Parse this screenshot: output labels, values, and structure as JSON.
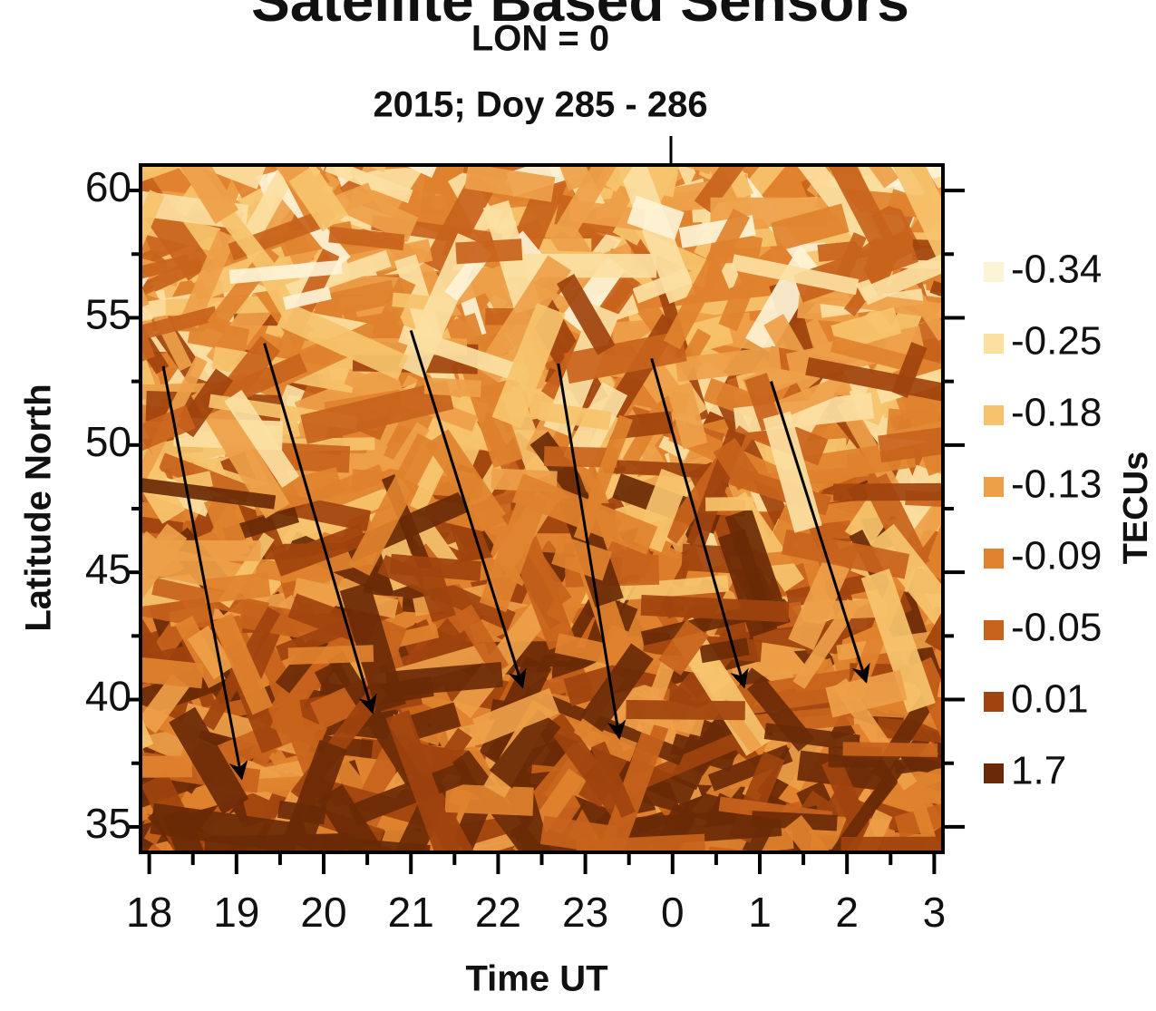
{
  "chart_data": {
    "type": "tec-map",
    "header": "Satellite Based Sensors",
    "title": "LON = 0",
    "subtitle": "2015; Doy 285 - 286",
    "xlabel": "Time UT",
    "ylabel": "Latitude North",
    "xlim": [
      17.9,
      27.1
    ],
    "ylim": [
      34,
      61
    ],
    "xticks": [
      18,
      19,
      20,
      21,
      22,
      23,
      {
        "value": 24,
        "label": "0"
      },
      {
        "value": 25,
        "label": "1"
      },
      {
        "value": 26,
        "label": "2"
      },
      {
        "value": 27,
        "label": "3"
      }
    ],
    "minor_xticks": [
      18.5,
      19.5,
      20.5,
      21.5,
      22.5,
      23.5,
      24.5,
      25.5,
      26.5
    ],
    "yticks": [
      35,
      40,
      45,
      50,
      55,
      60
    ],
    "minor_yticks": [
      37.5,
      42.5,
      47.5,
      52.5,
      57.5
    ],
    "colorbar": {
      "label": "TECUs",
      "levels": [
        -0.34,
        -0.25,
        -0.18,
        -0.13,
        -0.09,
        -0.05,
        0.01,
        1.7
      ],
      "colors": [
        "#fdf3d6",
        "#fbe0a2",
        "#f6c36c",
        "#eea049",
        "#e0822e",
        "#c8631c",
        "#a0430e",
        "#6a2a07"
      ]
    },
    "arrows": [
      {
        "x": [
          18.16,
          19.06
        ],
        "y": [
          53.1,
          36.9
        ]
      },
      {
        "x": [
          19.32,
          20.56
        ],
        "y": [
          54.0,
          39.5
        ]
      },
      {
        "x": [
          21.0,
          22.28
        ],
        "y": [
          54.5,
          40.5
        ]
      },
      {
        "x": [
          22.69,
          23.39
        ],
        "y": [
          53.2,
          38.5
        ]
      },
      {
        "x": [
          23.76,
          24.82
        ],
        "y": [
          53.4,
          40.5
        ]
      },
      {
        "x": [
          25.13,
          26.22
        ],
        "y": [
          52.5,
          40.7
        ]
      }
    ]
  }
}
